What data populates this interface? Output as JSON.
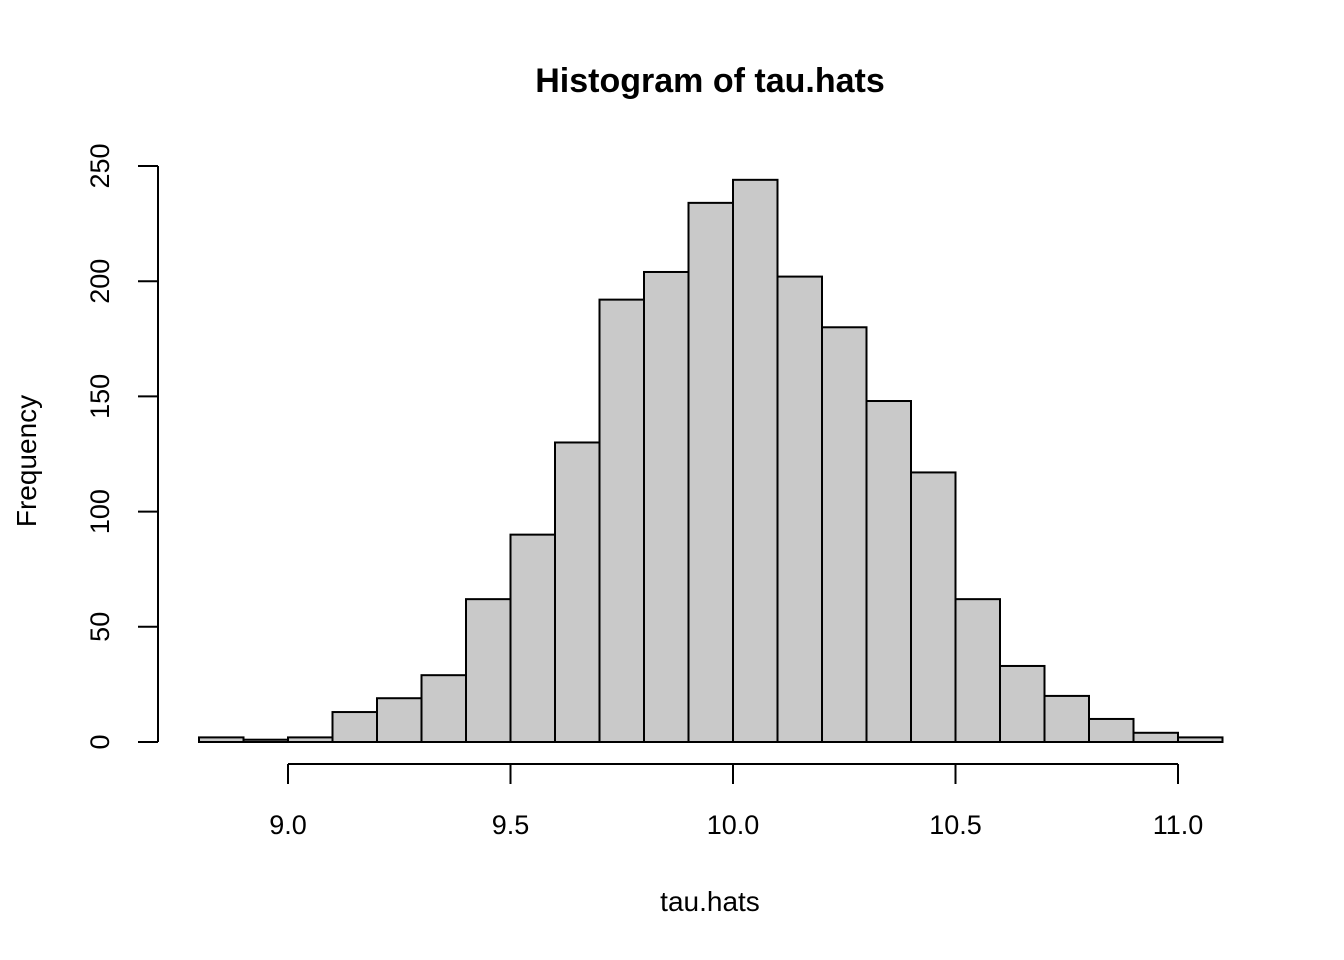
{
  "chart_data": {
    "type": "bar",
    "title": "Histogram of tau.hats",
    "xlabel": "tau.hats",
    "ylabel": "Frequency",
    "bin_width": 0.1,
    "bin_edges": [
      8.8,
      8.9,
      9.0,
      9.1,
      9.2,
      9.3,
      9.4,
      9.5,
      9.6,
      9.7,
      9.8,
      9.9,
      10.0,
      10.1,
      10.2,
      10.3,
      10.4,
      10.5,
      10.6,
      10.7,
      10.8,
      10.9,
      11.0,
      11.1
    ],
    "values": [
      2,
      1,
      2,
      13,
      19,
      29,
      62,
      90,
      130,
      192,
      204,
      234,
      244,
      202,
      180,
      148,
      117,
      62,
      33,
      20,
      10,
      4,
      2
    ],
    "xlim": [
      9.0,
      11.0
    ],
    "ylim": [
      0,
      250
    ],
    "x_ticks": [
      {
        "value": 9.0,
        "label": "9.0"
      },
      {
        "value": 9.5,
        "label": "9.5"
      },
      {
        "value": 10.0,
        "label": "10.0"
      },
      {
        "value": 10.5,
        "label": "10.5"
      },
      {
        "value": 11.0,
        "label": "11.0"
      }
    ],
    "y_ticks": [
      {
        "value": 0,
        "label": "0"
      },
      {
        "value": 50,
        "label": "50"
      },
      {
        "value": 100,
        "label": "100"
      },
      {
        "value": 150,
        "label": "150"
      },
      {
        "value": 200,
        "label": "200"
      },
      {
        "value": 250,
        "label": "250"
      }
    ],
    "bar_fill": "#c9c9c9",
    "bar_stroke": "#000000",
    "grid": false
  }
}
